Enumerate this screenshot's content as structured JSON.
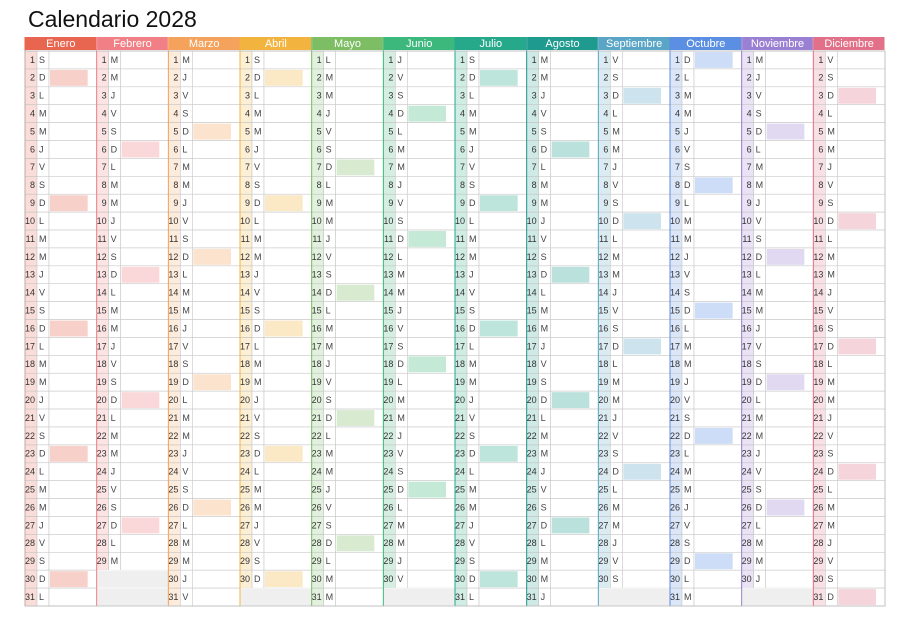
{
  "title": "Calendario 2028",
  "highlight_weekday": "D",
  "months": [
    {
      "name": "Enero",
      "color": "#e8654f",
      "days": [
        1,
        2,
        3,
        4,
        5,
        6,
        7,
        8,
        9,
        10,
        11,
        12,
        13,
        14,
        15,
        16,
        17,
        18,
        19,
        20,
        21,
        22,
        23,
        24,
        25,
        26,
        27,
        28,
        29,
        30,
        31
      ],
      "weekdays": [
        "S",
        "D",
        "L",
        "M",
        "M",
        "J",
        "V",
        "S",
        "D",
        "L",
        "M",
        "M",
        "J",
        "V",
        "S",
        "D",
        "L",
        "M",
        "M",
        "J",
        "V",
        "S",
        "D",
        "L",
        "M",
        "M",
        "J",
        "V",
        "S",
        "D",
        "L"
      ]
    },
    {
      "name": "Febrero",
      "color": "#f07f86",
      "days": [
        1,
        2,
        3,
        4,
        5,
        6,
        7,
        8,
        9,
        10,
        11,
        12,
        13,
        14,
        15,
        16,
        17,
        18,
        19,
        20,
        21,
        22,
        23,
        24,
        25,
        26,
        27,
        28,
        29
      ],
      "weekdays": [
        "M",
        "M",
        "J",
        "V",
        "S",
        "D",
        "L",
        "M",
        "M",
        "J",
        "V",
        "S",
        "D",
        "L",
        "M",
        "M",
        "J",
        "V",
        "S",
        "D",
        "L",
        "M",
        "M",
        "J",
        "V",
        "S",
        "D",
        "L",
        "M"
      ]
    },
    {
      "name": "Marzo",
      "color": "#f4a25c",
      "days": [
        1,
        2,
        3,
        4,
        5,
        6,
        7,
        8,
        9,
        10,
        11,
        12,
        13,
        14,
        15,
        16,
        17,
        18,
        19,
        20,
        21,
        22,
        23,
        24,
        25,
        26,
        27,
        28,
        29,
        30,
        31
      ],
      "weekdays": [
        "M",
        "J",
        "V",
        "S",
        "D",
        "L",
        "M",
        "M",
        "J",
        "V",
        "S",
        "D",
        "L",
        "M",
        "M",
        "J",
        "V",
        "S",
        "D",
        "L",
        "M",
        "M",
        "J",
        "V",
        "S",
        "D",
        "L",
        "M",
        "M",
        "J",
        "V"
      ]
    },
    {
      "name": "Abril",
      "color": "#f3b43f",
      "days": [
        1,
        2,
        3,
        4,
        5,
        6,
        7,
        8,
        9,
        10,
        11,
        12,
        13,
        14,
        15,
        16,
        17,
        18,
        19,
        20,
        21,
        22,
        23,
        24,
        25,
        26,
        27,
        28,
        29,
        30
      ],
      "weekdays": [
        "S",
        "D",
        "L",
        "M",
        "M",
        "J",
        "V",
        "S",
        "D",
        "L",
        "M",
        "M",
        "J",
        "V",
        "S",
        "D",
        "L",
        "M",
        "M",
        "J",
        "V",
        "S",
        "D",
        "L",
        "M",
        "M",
        "J",
        "V",
        "S",
        "D"
      ]
    },
    {
      "name": "Mayo",
      "color": "#7dbd63",
      "days": [
        1,
        2,
        3,
        4,
        5,
        6,
        7,
        8,
        9,
        10,
        11,
        12,
        13,
        14,
        15,
        16,
        17,
        18,
        19,
        20,
        21,
        22,
        23,
        24,
        25,
        26,
        27,
        28,
        29,
        30,
        31
      ],
      "weekdays": [
        "L",
        "M",
        "M",
        "J",
        "V",
        "S",
        "D",
        "L",
        "M",
        "M",
        "J",
        "V",
        "S",
        "D",
        "L",
        "M",
        "M",
        "J",
        "V",
        "S",
        "D",
        "L",
        "M",
        "M",
        "J",
        "V",
        "S",
        "D",
        "L",
        "M",
        "M"
      ]
    },
    {
      "name": "Junio",
      "color": "#3cb87c",
      "days": [
        1,
        2,
        3,
        4,
        5,
        6,
        7,
        8,
        9,
        10,
        11,
        12,
        13,
        14,
        15,
        16,
        17,
        18,
        19,
        20,
        21,
        22,
        23,
        24,
        25,
        26,
        27,
        28,
        29,
        30
      ],
      "weekdays": [
        "J",
        "V",
        "S",
        "D",
        "L",
        "M",
        "M",
        "J",
        "V",
        "S",
        "D",
        "L",
        "M",
        "M",
        "J",
        "V",
        "S",
        "D",
        "L",
        "M",
        "M",
        "J",
        "V",
        "S",
        "D",
        "L",
        "M",
        "M",
        "J",
        "V"
      ]
    },
    {
      "name": "Julio",
      "color": "#26a98a",
      "days": [
        1,
        2,
        3,
        4,
        5,
        6,
        7,
        8,
        9,
        10,
        11,
        12,
        13,
        14,
        15,
        16,
        17,
        18,
        19,
        20,
        21,
        22,
        23,
        24,
        25,
        26,
        27,
        28,
        29,
        30,
        31
      ],
      "weekdays": [
        "S",
        "D",
        "L",
        "M",
        "M",
        "J",
        "V",
        "S",
        "D",
        "L",
        "M",
        "M",
        "J",
        "V",
        "S",
        "D",
        "L",
        "M",
        "M",
        "J",
        "V",
        "S",
        "D",
        "L",
        "M",
        "M",
        "J",
        "V",
        "S",
        "D",
        "L"
      ]
    },
    {
      "name": "Agosto",
      "color": "#1e9a8e",
      "days": [
        1,
        2,
        3,
        4,
        5,
        6,
        7,
        8,
        9,
        10,
        11,
        12,
        13,
        14,
        15,
        16,
        17,
        18,
        19,
        20,
        21,
        22,
        23,
        24,
        25,
        26,
        27,
        28,
        29,
        30,
        31
      ],
      "weekdays": [
        "M",
        "M",
        "J",
        "V",
        "S",
        "D",
        "L",
        "M",
        "M",
        "J",
        "V",
        "S",
        "D",
        "L",
        "M",
        "M",
        "J",
        "V",
        "S",
        "D",
        "L",
        "M",
        "M",
        "J",
        "V",
        "S",
        "D",
        "L",
        "M",
        "M",
        "J"
      ]
    },
    {
      "name": "Septiembre",
      "color": "#5aa5c6",
      "days": [
        1,
        2,
        3,
        4,
        5,
        6,
        7,
        8,
        9,
        10,
        11,
        12,
        13,
        14,
        15,
        16,
        17,
        18,
        19,
        20,
        21,
        22,
        23,
        24,
        25,
        26,
        27,
        28,
        29,
        30
      ],
      "weekdays": [
        "V",
        "S",
        "D",
        "L",
        "M",
        "M",
        "J",
        "V",
        "S",
        "D",
        "L",
        "M",
        "M",
        "J",
        "V",
        "S",
        "D",
        "L",
        "M",
        "M",
        "J",
        "V",
        "S",
        "D",
        "L",
        "M",
        "M",
        "J",
        "V",
        "S"
      ]
    },
    {
      "name": "Octubre",
      "color": "#5b8fe3",
      "days": [
        1,
        2,
        3,
        4,
        5,
        6,
        7,
        8,
        9,
        10,
        11,
        12,
        13,
        14,
        15,
        16,
        17,
        18,
        19,
        20,
        21,
        22,
        23,
        24,
        25,
        26,
        27,
        28,
        29,
        30,
        31
      ],
      "weekdays": [
        "D",
        "L",
        "M",
        "M",
        "J",
        "V",
        "S",
        "D",
        "L",
        "M",
        "M",
        "J",
        "V",
        "S",
        "D",
        "L",
        "M",
        "M",
        "J",
        "V",
        "S",
        "D",
        "L",
        "M",
        "M",
        "J",
        "V",
        "S",
        "D",
        "L",
        "M"
      ]
    },
    {
      "name": "Noviembre",
      "color": "#9a80d2",
      "days": [
        1,
        2,
        3,
        4,
        5,
        6,
        7,
        8,
        9,
        10,
        11,
        12,
        13,
        14,
        15,
        16,
        17,
        18,
        19,
        20,
        21,
        22,
        23,
        24,
        25,
        26,
        27,
        28,
        29,
        30
      ],
      "weekdays": [
        "M",
        "J",
        "V",
        "S",
        "D",
        "L",
        "M",
        "M",
        "J",
        "V",
        "S",
        "D",
        "L",
        "M",
        "M",
        "J",
        "V",
        "S",
        "D",
        "L",
        "M",
        "M",
        "J",
        "V",
        "S",
        "D",
        "L",
        "M",
        "M",
        "J"
      ]
    },
    {
      "name": "Diciembre",
      "color": "#e27088",
      "days": [
        1,
        2,
        3,
        4,
        5,
        6,
        7,
        8,
        9,
        10,
        11,
        12,
        13,
        14,
        15,
        16,
        17,
        18,
        19,
        20,
        21,
        22,
        23,
        24,
        25,
        26,
        27,
        28,
        29,
        30,
        31
      ],
      "weekdays": [
        "V",
        "S",
        "D",
        "L",
        "M",
        "M",
        "J",
        "V",
        "S",
        "D",
        "L",
        "M",
        "M",
        "J",
        "V",
        "S",
        "D",
        "L",
        "M",
        "M",
        "J",
        "V",
        "S",
        "D",
        "L",
        "M",
        "M",
        "J",
        "V",
        "S",
        "D"
      ]
    }
  ]
}
